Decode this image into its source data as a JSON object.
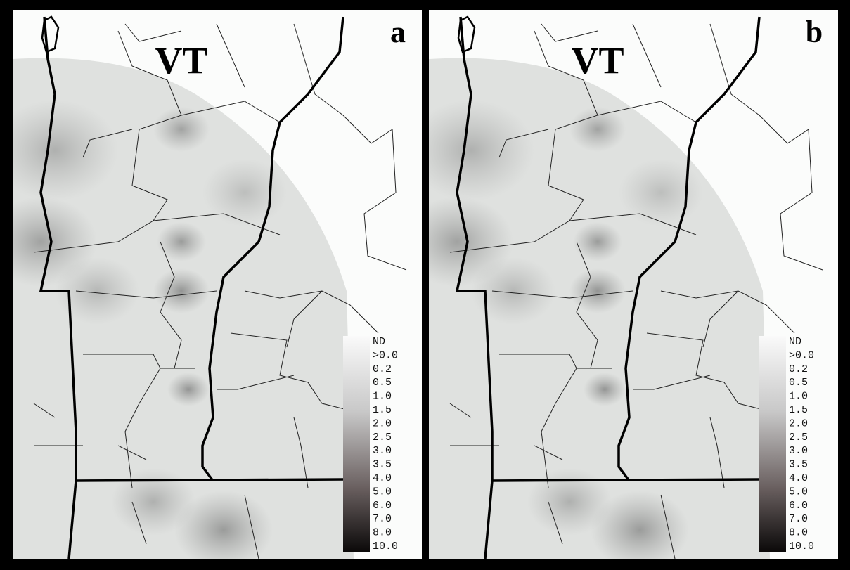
{
  "panels": [
    {
      "label": "a",
      "state": "VT"
    },
    {
      "label": "b",
      "state": "VT"
    }
  ],
  "legend": [
    "ND",
    ">0.0",
    "0.2",
    "0.5",
    "1.0",
    "1.5",
    "2.0",
    "2.5",
    "3.0",
    "3.5",
    "4.0",
    "5.0",
    "6.0",
    "7.0",
    "8.0",
    "10.0"
  ]
}
